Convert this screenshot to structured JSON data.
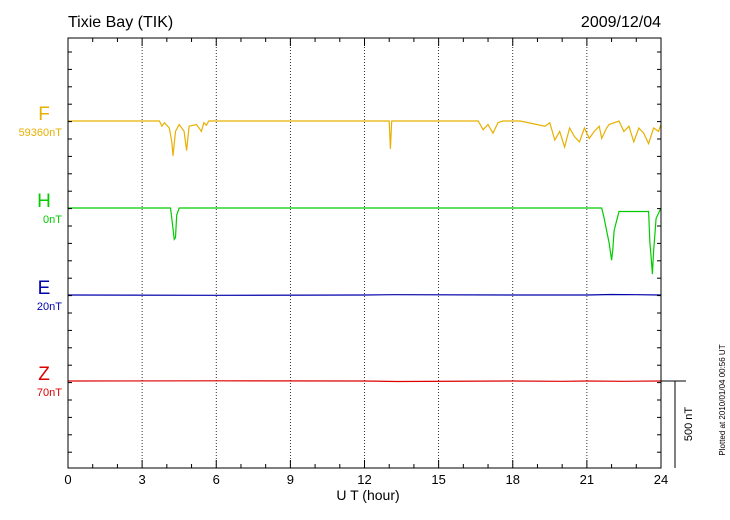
{
  "chart_data": {
    "type": "line",
    "title": "Tixie Bay (TIK)",
    "date": "2009/12/04",
    "xlabel": "U T (hour)",
    "xlim": [
      0,
      24
    ],
    "xticks": [
      "0",
      "3",
      "6",
      "9",
      "12",
      "15",
      "18",
      "21",
      "24"
    ],
    "scale_label": "500 nT",
    "scale_nT": 500,
    "footnote": "Plotted at 2010/01/04 00:56 UT",
    "grid": "dotted vertical lines every 3 hours",
    "series": [
      {
        "name": "F",
        "baseline": "59360nT",
        "color": "#e8b000",
        "points": [
          [
            0,
            0
          ],
          [
            3.7,
            0
          ],
          [
            3.8,
            -30
          ],
          [
            3.9,
            -10
          ],
          [
            4.1,
            -40
          ],
          [
            4.2,
            -120
          ],
          [
            4.25,
            -200
          ],
          [
            4.35,
            -60
          ],
          [
            4.5,
            -20
          ],
          [
            4.7,
            -60
          ],
          [
            4.8,
            -170
          ],
          [
            4.9,
            -30
          ],
          [
            5.2,
            -20
          ],
          [
            5.4,
            -60
          ],
          [
            5.5,
            -10
          ],
          [
            5.6,
            -25
          ],
          [
            5.7,
            0
          ],
          [
            13,
            0
          ],
          [
            13.05,
            -160
          ],
          [
            13.1,
            0
          ],
          [
            16.6,
            0
          ],
          [
            16.8,
            -50
          ],
          [
            17.0,
            -20
          ],
          [
            17.2,
            -70
          ],
          [
            17.4,
            -10
          ],
          [
            17.6,
            0
          ],
          [
            18.3,
            0
          ],
          [
            19.3,
            -30
          ],
          [
            19.5,
            -10
          ],
          [
            19.7,
            -110
          ],
          [
            19.9,
            -60
          ],
          [
            20.1,
            -150
          ],
          [
            20.3,
            -40
          ],
          [
            20.5,
            -90
          ],
          [
            20.7,
            -120
          ],
          [
            20.9,
            -40
          ],
          [
            21.1,
            -100
          ],
          [
            21.3,
            -60
          ],
          [
            21.5,
            -30
          ],
          [
            21.6,
            -100
          ],
          [
            21.8,
            -40
          ],
          [
            21.9,
            -20
          ],
          [
            22.3,
            0
          ],
          [
            22.5,
            -60
          ],
          [
            22.7,
            -30
          ],
          [
            22.9,
            -120
          ],
          [
            23.1,
            -40
          ],
          [
            23.3,
            -70
          ],
          [
            23.5,
            -130
          ],
          [
            23.7,
            -40
          ],
          [
            23.9,
            -60
          ],
          [
            24,
            -20
          ]
        ]
      },
      {
        "name": "H",
        "baseline": "0nT",
        "color": "#00cc00",
        "points": [
          [
            0,
            0
          ],
          [
            4.15,
            0
          ],
          [
            4.2,
            -60
          ],
          [
            4.3,
            -180
          ],
          [
            4.35,
            -170
          ],
          [
            4.4,
            -40
          ],
          [
            4.5,
            0
          ],
          [
            21.6,
            0
          ],
          [
            21.7,
            -60
          ],
          [
            21.8,
            -130
          ],
          [
            21.9,
            -200
          ],
          [
            22.0,
            -300
          ],
          [
            22.05,
            -240
          ],
          [
            22.1,
            -130
          ],
          [
            22.3,
            -20
          ],
          [
            23.5,
            -20
          ],
          [
            23.55,
            -200
          ],
          [
            23.6,
            -280
          ],
          [
            23.65,
            -380
          ],
          [
            23.7,
            -250
          ],
          [
            23.8,
            -60
          ],
          [
            24,
            0
          ]
        ]
      },
      {
        "name": "E",
        "baseline": "20nT",
        "color": "#0000aa",
        "points": [
          [
            0,
            0
          ],
          [
            6,
            -2
          ],
          [
            12,
            0
          ],
          [
            13.2,
            2
          ],
          [
            18,
            0
          ],
          [
            21,
            0
          ],
          [
            22,
            3
          ],
          [
            23,
            2
          ],
          [
            24,
            0
          ]
        ]
      },
      {
        "name": "Z",
        "baseline": "70nT",
        "color": "#dd0000",
        "points": [
          [
            0,
            0
          ],
          [
            6,
            1
          ],
          [
            12,
            0
          ],
          [
            13.3,
            -3
          ],
          [
            18,
            0
          ],
          [
            20,
            -2
          ],
          [
            21,
            0
          ],
          [
            22.5,
            -2
          ],
          [
            24,
            0
          ]
        ]
      }
    ]
  }
}
